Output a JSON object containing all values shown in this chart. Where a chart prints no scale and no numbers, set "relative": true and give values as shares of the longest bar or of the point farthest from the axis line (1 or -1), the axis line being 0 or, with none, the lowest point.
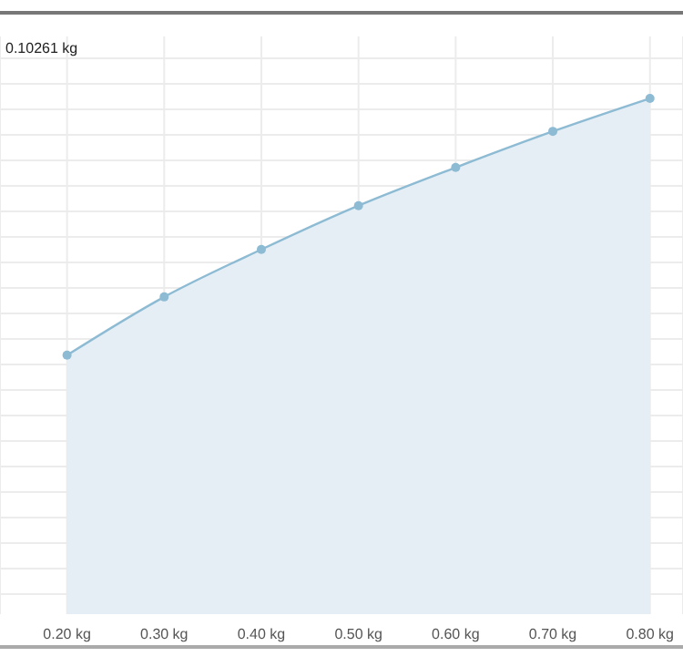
{
  "chart_data": {
    "type": "area",
    "annotations": [
      "0.10261 kg"
    ],
    "x": [
      0.2,
      0.3,
      0.4,
      0.5,
      0.6,
      0.7,
      0.8
    ],
    "series": [
      {
        "color": "#8dbbd3",
        "values": [
          0.502,
          0.615,
          0.707,
          0.792,
          0.866,
          0.936,
          1
        ]
      }
    ],
    "relative": true,
    "xlim": [
      0.131,
      0.834
    ],
    "xticks": [
      {
        "value": 0.2,
        "label": "0.20 kg"
      },
      {
        "value": 0.3,
        "label": "0.30 kg"
      },
      {
        "value": 0.4,
        "label": "0.40 kg"
      },
      {
        "value": 0.5,
        "label": "0.50 kg"
      },
      {
        "value": 0.6,
        "label": "0.60 kg"
      },
      {
        "value": 0.7,
        "label": "0.70 kg"
      },
      {
        "value": 0.8,
        "label": "0.80 kg"
      }
    ],
    "grid": true,
    "marker": "circle",
    "legend": false
  }
}
